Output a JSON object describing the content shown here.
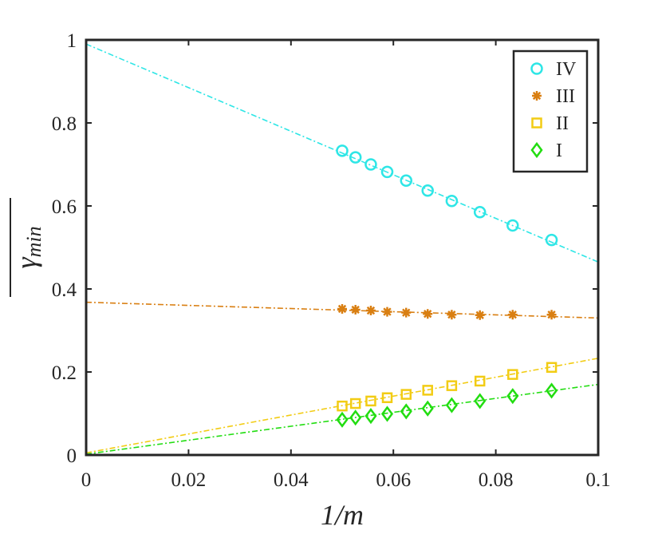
{
  "chart_data": {
    "type": "scatter",
    "title": "",
    "xlabel": "1/m",
    "ylabel": "γ_min (mean)",
    "xlim": [
      0,
      0.1
    ],
    "ylim": [
      0,
      1
    ],
    "grid": false,
    "legend_position": "top-right",
    "xticks": [
      "0",
      "0.02",
      "0.04",
      "0.06",
      "0.08",
      "0.1"
    ],
    "yticks": [
      "0",
      "0.2",
      "0.4",
      "0.6",
      "0.8",
      "1"
    ],
    "x": [
      0.05,
      0.0526,
      0.0556,
      0.0588,
      0.0625,
      0.0667,
      0.0714,
      0.0769,
      0.0833,
      0.0909
    ],
    "series": [
      {
        "name": "IV",
        "marker": "circle",
        "color": "#2ee6e6",
        "values": [
          0.733,
          0.717,
          0.7,
          0.682,
          0.661,
          0.637,
          0.612,
          0.585,
          0.553,
          0.518
        ],
        "fit": {
          "intercept": 0.99,
          "slope": -5.25
        }
      },
      {
        "name": "III",
        "marker": "asterisk",
        "color": "#d97f12",
        "values": [
          0.352,
          0.35,
          0.348,
          0.345,
          0.343,
          0.34,
          0.338,
          0.337,
          0.338,
          0.338
        ],
        "fit": {
          "intercept": 0.368,
          "slope": -0.38
        }
      },
      {
        "name": "II",
        "marker": "square",
        "color": "#f2cc14",
        "values": [
          0.118,
          0.124,
          0.13,
          0.138,
          0.146,
          0.156,
          0.167,
          0.178,
          0.194,
          0.211
        ],
        "fit": {
          "intercept": 0.005,
          "slope": 2.28
        }
      },
      {
        "name": "I",
        "marker": "diamond",
        "color": "#22dd11",
        "values": [
          0.085,
          0.09,
          0.094,
          0.099,
          0.105,
          0.112,
          0.12,
          0.13,
          0.142,
          0.155
        ],
        "fit": {
          "intercept": 0.002,
          "slope": 1.68
        }
      }
    ]
  }
}
